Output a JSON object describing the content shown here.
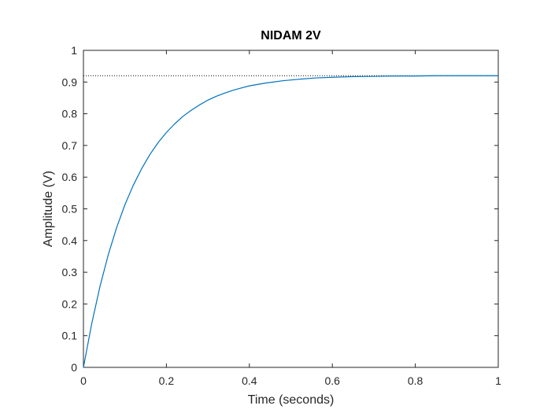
{
  "chart_data": {
    "type": "line",
    "title": "NIDAM 2V",
    "xlabel": "Time (seconds)",
    "ylabel": "Amplitude (V)",
    "xlim": [
      0,
      1
    ],
    "ylim": [
      0,
      1
    ],
    "x_ticks": [
      0,
      0.2,
      0.4,
      0.6,
      0.8,
      1
    ],
    "x_tick_labels": [
      "0",
      "0.2",
      "0.4",
      "0.6",
      "0.8",
      "1"
    ],
    "y_ticks": [
      0,
      0.1,
      0.2,
      0.3,
      0.4,
      0.5,
      0.6,
      0.7,
      0.8,
      0.9,
      1
    ],
    "y_tick_labels": [
      "0",
      "0.1",
      "0.2",
      "0.3",
      "0.4",
      "0.5",
      "0.6",
      "0.7",
      "0.8",
      "0.9",
      "1"
    ],
    "grid": false,
    "series": [
      {
        "color": "#0072bd",
        "x": [
          0,
          0.02,
          0.04,
          0.06,
          0.08,
          0.1,
          0.12,
          0.14,
          0.16,
          0.18,
          0.2,
          0.22,
          0.24,
          0.26,
          0.28,
          0.3,
          0.32,
          0.34,
          0.36,
          0.38,
          0.4,
          0.44,
          0.48,
          0.52,
          0.56,
          0.6,
          0.65,
          0.7,
          0.75,
          0.8,
          0.85,
          0.9,
          0.95,
          1.0
        ],
        "y": [
          0,
          0.138,
          0.256,
          0.356,
          0.441,
          0.513,
          0.574,
          0.626,
          0.671,
          0.709,
          0.741,
          0.768,
          0.792,
          0.811,
          0.828,
          0.843,
          0.855,
          0.865,
          0.874,
          0.881,
          0.888,
          0.897,
          0.904,
          0.909,
          0.913,
          0.915,
          0.917,
          0.918,
          0.919,
          0.919,
          0.92,
          0.92,
          0.92,
          0.92
        ]
      }
    ],
    "reference_lines": [
      {
        "orientation": "horizontal",
        "y": 0.92,
        "style": "dotted",
        "color": "#000000"
      }
    ]
  }
}
